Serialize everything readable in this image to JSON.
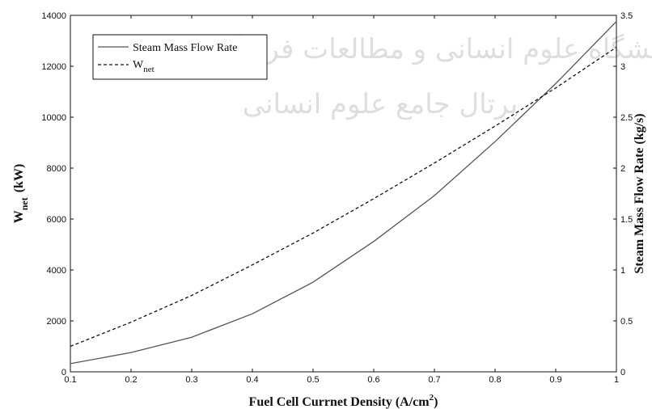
{
  "chart_data": {
    "type": "line",
    "x": [
      0.1,
      0.2,
      0.3,
      0.4,
      0.5,
      0.6,
      0.7,
      0.8,
      0.9,
      1.0
    ],
    "xlim": [
      0.1,
      1
    ],
    "xticks": [
      "0.1",
      "0.2",
      "0.3",
      "0.4",
      "0.5",
      "0.6",
      "0.7",
      "0.8",
      "0.9",
      "1"
    ],
    "xlabel_main": "Fuel Cell Currnet Density (A/cm",
    "xlabel_sup": "2",
    "xlabel_end": ")",
    "ylabel_left_main": "W",
    "ylabel_left_sub": "net",
    "ylabel_left_unit": "(kW)",
    "ylim_left": [
      0,
      14000
    ],
    "yticks_left": [
      "0",
      "2000",
      "4000",
      "6000",
      "8000",
      "10000",
      "12000",
      "14000"
    ],
    "ylabel_right": "Steam Mass Flow Rate (kg/s)",
    "ylim_right": [
      0,
      3.5
    ],
    "yticks_right": [
      "0",
      "0.5",
      "1",
      "1.5",
      "2",
      "2.5",
      "3",
      "3.5"
    ],
    "grid": false,
    "legend_position": "top-left",
    "series": [
      {
        "name": "Steam Mass Flow Rate",
        "axis": "right",
        "style": "solid",
        "color": "#555555",
        "values": [
          0.08,
          0.19,
          0.34,
          0.57,
          0.88,
          1.28,
          1.73,
          2.26,
          2.83,
          3.44
        ]
      },
      {
        "name_main": "W",
        "name_sub": "net",
        "axis": "left",
        "style": "dashed",
        "color": "#111111",
        "values": [
          1000,
          1950,
          3000,
          4200,
          5450,
          6800,
          8200,
          9650,
          11150,
          12750
        ]
      }
    ],
    "watermark": "پژوهشگاه علوم انسانی و مطالعات فرهنگی پرتال جامع علوم انسانی"
  }
}
